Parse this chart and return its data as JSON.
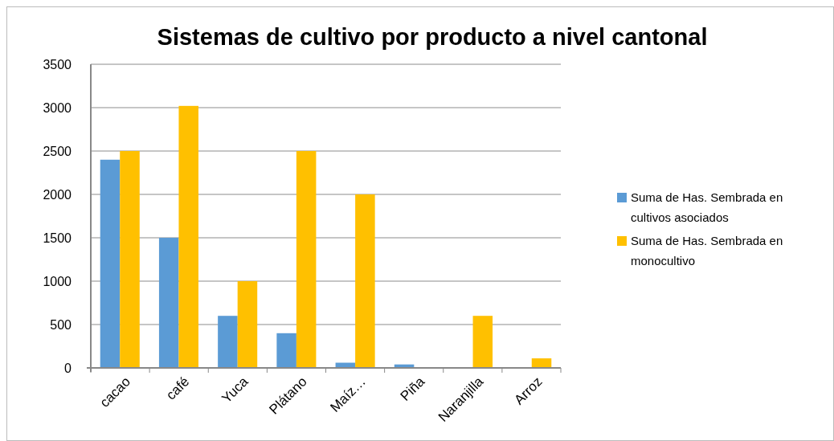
{
  "chart_data": {
    "type": "bar",
    "title": "Sistemas de cultivo por producto a nivel cantonal",
    "categories": [
      "cacao",
      "café",
      "Yuca",
      "Plátano",
      "Maíz…",
      "Piña",
      "Naranjilla",
      "Arroz"
    ],
    "series": [
      {
        "name": "Suma de Has. Sembrada en cultivos asociados",
        "color": "#5b9bd5",
        "values": [
          2400,
          1500,
          600,
          400,
          60,
          40,
          null,
          null
        ]
      },
      {
        "name": "Suma de Has. Sembrada en monocultivo",
        "color": "#ffc000",
        "values": [
          2500,
          3020,
          1000,
          2500,
          2000,
          null,
          600,
          110
        ]
      }
    ],
    "ylim": [
      0,
      3500
    ],
    "yticks": [
      0,
      500,
      1000,
      1500,
      2000,
      2500,
      3000,
      3500
    ],
    "grid": "y",
    "legend": "right"
  }
}
